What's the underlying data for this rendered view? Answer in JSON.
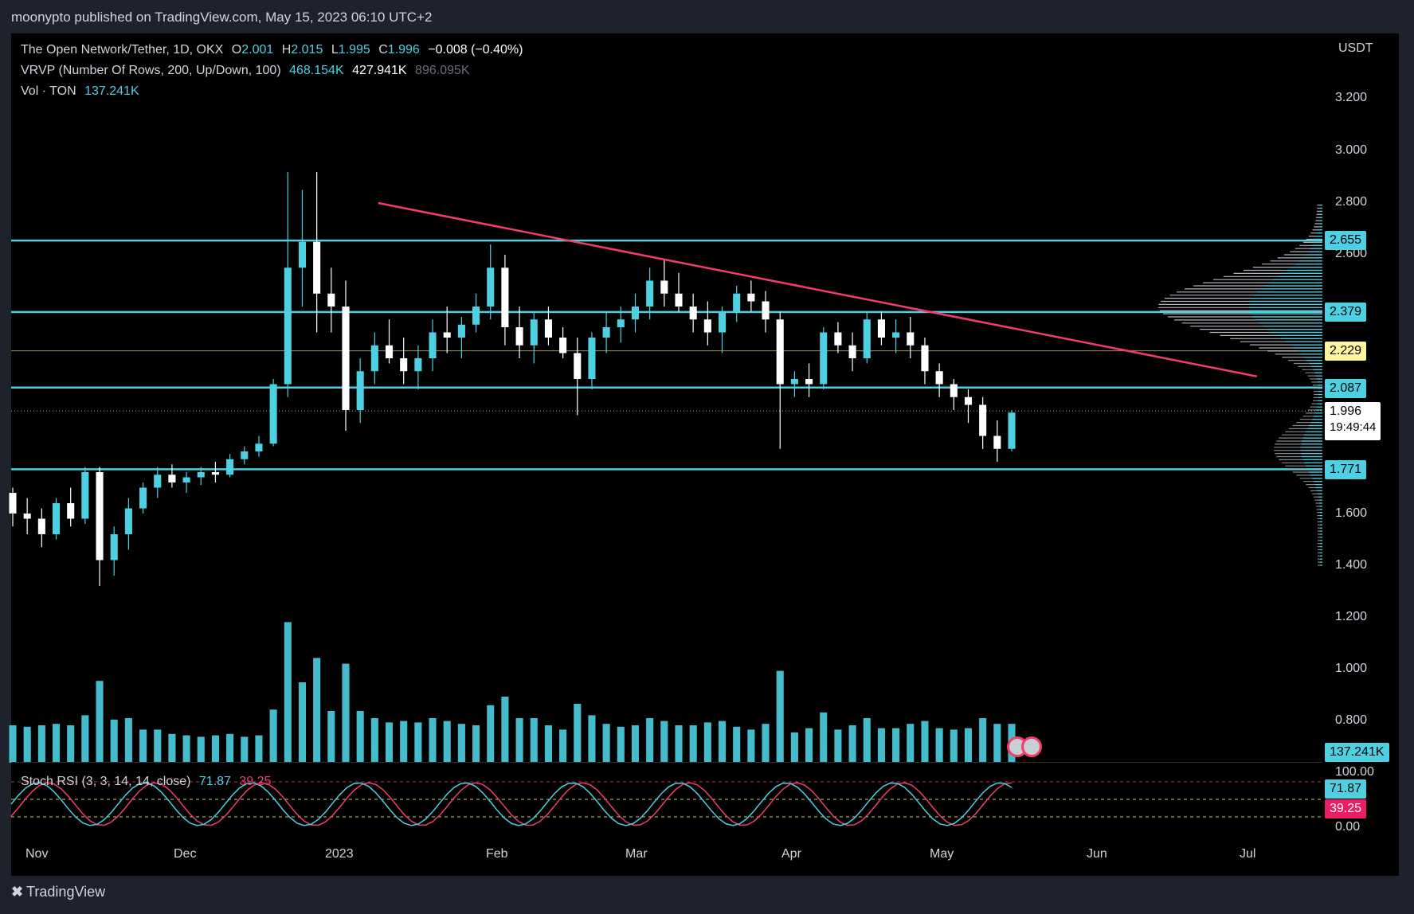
{
  "header": {
    "published_text": "moonypto published on TradingView.com, May 15, 2023 06:10 UTC+2"
  },
  "legend": {
    "symbol_line": "The Open Network/Tether, 1D, OKX",
    "o_label": "O",
    "o_value": "2.001",
    "h_label": "H",
    "h_value": "2.015",
    "l_label": "L",
    "l_value": "1.995",
    "c_label": "C",
    "c_value": "1.996",
    "change": "−0.008 (−0.40%)",
    "vrvp_label": "VRVP (Number Of Rows, 200, Up/Down, 100)",
    "vrvp_up": "468.154K",
    "vrvp_down": "427.941K",
    "vrvp_total": "896.095K",
    "vol_label": "Vol · TON",
    "vol_value": "137.241K"
  },
  "price_axis": {
    "currency": "USDT",
    "ticks": [
      "3.200",
      "3.000",
      "2.800",
      "2.600",
      "1.600",
      "1.400",
      "1.200",
      "1.000",
      "0.800"
    ]
  },
  "price_tags": {
    "level_2655": "2.655",
    "level_2379": "2.379",
    "level_2229": "2.229",
    "level_2087": "2.087",
    "current": "1.996",
    "countdown": "19:49:44",
    "level_1771": "1.771",
    "volume": "137.241K"
  },
  "stoch_rsi": {
    "label": "Stoch RSI (3, 3, 14, 14, close)",
    "k_value": "71.87",
    "d_value": "39.25",
    "axis_top": "100.00",
    "axis_bottom": "0.00",
    "tag_k": "71.87",
    "tag_d": "39.25"
  },
  "time_axis": {
    "labels": [
      "Nov",
      "Dec",
      "2023",
      "Feb",
      "Mar",
      "Apr",
      "May",
      "Jun",
      "Jul"
    ]
  },
  "footer": {
    "brand": "TradingView"
  },
  "colors": {
    "up": "#4dd0e1",
    "down": "#ffffff",
    "trendline": "#f23d6b",
    "hline": "#4dd0e1",
    "midline": "#fff59d"
  },
  "chart_data": {
    "type": "candlestick",
    "horizontal_levels": [
      2.655,
      2.379,
      2.229,
      2.087,
      1.771
    ],
    "trendline": {
      "from": [
        0.28,
        2.8
      ],
      "to": [
        0.95,
        2.13
      ]
    },
    "current_price": 1.996,
    "ohlc_approx": [
      [
        1.68,
        1.7,
        1.55,
        1.6
      ],
      [
        1.6,
        1.66,
        1.52,
        1.58
      ],
      [
        1.58,
        1.62,
        1.47,
        1.52
      ],
      [
        1.52,
        1.66,
        1.5,
        1.64
      ],
      [
        1.64,
        1.7,
        1.55,
        1.58
      ],
      [
        1.58,
        1.78,
        1.56,
        1.76
      ],
      [
        1.76,
        1.78,
        1.32,
        1.42
      ],
      [
        1.42,
        1.55,
        1.36,
        1.52
      ],
      [
        1.52,
        1.66,
        1.46,
        1.62
      ],
      [
        1.62,
        1.72,
        1.6,
        1.7
      ],
      [
        1.7,
        1.78,
        1.66,
        1.75
      ],
      [
        1.75,
        1.79,
        1.7,
        1.72
      ],
      [
        1.72,
        1.76,
        1.68,
        1.74
      ],
      [
        1.74,
        1.78,
        1.71,
        1.76
      ],
      [
        1.76,
        1.8,
        1.72,
        1.75
      ],
      [
        1.75,
        1.83,
        1.74,
        1.81
      ],
      [
        1.81,
        1.86,
        1.79,
        1.84
      ],
      [
        1.84,
        1.9,
        1.82,
        1.87
      ],
      [
        1.87,
        2.12,
        1.86,
        2.1
      ],
      [
        2.1,
        2.92,
        2.05,
        2.55
      ],
      [
        2.55,
        2.85,
        2.4,
        2.65
      ],
      [
        2.65,
        2.92,
        2.3,
        2.45
      ],
      [
        2.45,
        2.55,
        2.3,
        2.4
      ],
      [
        2.4,
        2.5,
        1.92,
        2.0
      ],
      [
        2.0,
        2.2,
        1.95,
        2.15
      ],
      [
        2.15,
        2.3,
        2.1,
        2.25
      ],
      [
        2.25,
        2.35,
        2.18,
        2.2
      ],
      [
        2.2,
        2.28,
        2.1,
        2.15
      ],
      [
        2.15,
        2.25,
        2.08,
        2.2
      ],
      [
        2.2,
        2.35,
        2.15,
        2.3
      ],
      [
        2.3,
        2.4,
        2.22,
        2.28
      ],
      [
        2.28,
        2.36,
        2.2,
        2.33
      ],
      [
        2.33,
        2.45,
        2.3,
        2.4
      ],
      [
        2.4,
        2.64,
        2.35,
        2.55
      ],
      [
        2.55,
        2.6,
        2.25,
        2.32
      ],
      [
        2.32,
        2.4,
        2.2,
        2.25
      ],
      [
        2.25,
        2.38,
        2.18,
        2.35
      ],
      [
        2.35,
        2.4,
        2.25,
        2.28
      ],
      [
        2.28,
        2.32,
        2.2,
        2.22
      ],
      [
        2.22,
        2.28,
        1.98,
        2.12
      ],
      [
        2.12,
        2.3,
        2.08,
        2.28
      ],
      [
        2.28,
        2.38,
        2.22,
        2.32
      ],
      [
        2.32,
        2.4,
        2.26,
        2.35
      ],
      [
        2.35,
        2.45,
        2.3,
        2.4
      ],
      [
        2.4,
        2.55,
        2.35,
        2.5
      ],
      [
        2.5,
        2.58,
        2.4,
        2.45
      ],
      [
        2.45,
        2.53,
        2.38,
        2.4
      ],
      [
        2.4,
        2.45,
        2.3,
        2.35
      ],
      [
        2.35,
        2.42,
        2.25,
        2.3
      ],
      [
        2.3,
        2.4,
        2.22,
        2.38
      ],
      [
        2.38,
        2.48,
        2.34,
        2.45
      ],
      [
        2.45,
        2.5,
        2.38,
        2.42
      ],
      [
        2.42,
        2.46,
        2.3,
        2.35
      ],
      [
        2.35,
        2.38,
        1.85,
        2.1
      ],
      [
        2.1,
        2.15,
        2.05,
        2.12
      ],
      [
        2.12,
        2.18,
        2.05,
        2.1
      ],
      [
        2.1,
        2.32,
        2.08,
        2.3
      ],
      [
        2.3,
        2.34,
        2.22,
        2.25
      ],
      [
        2.25,
        2.3,
        2.15,
        2.2
      ],
      [
        2.2,
        2.38,
        2.18,
        2.35
      ],
      [
        2.35,
        2.38,
        2.25,
        2.28
      ],
      [
        2.28,
        2.35,
        2.22,
        2.3
      ],
      [
        2.3,
        2.36,
        2.2,
        2.25
      ],
      [
        2.25,
        2.28,
        2.1,
        2.15
      ],
      [
        2.15,
        2.18,
        2.05,
        2.1
      ],
      [
        2.1,
        2.12,
        2.0,
        2.05
      ],
      [
        2.05,
        2.08,
        1.95,
        2.02
      ],
      [
        2.02,
        2.05,
        1.85,
        1.9
      ],
      [
        1.9,
        1.96,
        1.8,
        1.85
      ],
      [
        1.85,
        2.0,
        1.84,
        1.99
      ]
    ]
  }
}
